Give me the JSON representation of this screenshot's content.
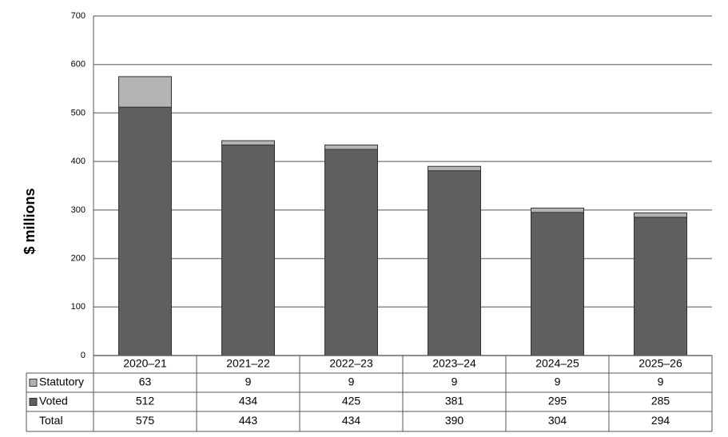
{
  "chart_data": {
    "type": "stacked-bar",
    "y_label": "$ millions",
    "categories": [
      "2020–21",
      "2021–22",
      "2022–23",
      "2023–24",
      "2024–25",
      "2025–26"
    ],
    "series": [
      {
        "name": "Statutory",
        "color": "#b3b3b3",
        "values": [
          63,
          9,
          9,
          9,
          9,
          9
        ]
      },
      {
        "name": "Voted",
        "color": "#5f5f5f",
        "values": [
          512,
          434,
          425,
          381,
          295,
          285
        ]
      }
    ],
    "total": {
      "name": "Total",
      "values": [
        575,
        443,
        434,
        390,
        304,
        294
      ]
    },
    "ylim": [
      0,
      700
    ],
    "yticks": [
      0,
      100,
      200,
      300,
      400,
      500,
      600,
      700
    ],
    "grid": true
  }
}
